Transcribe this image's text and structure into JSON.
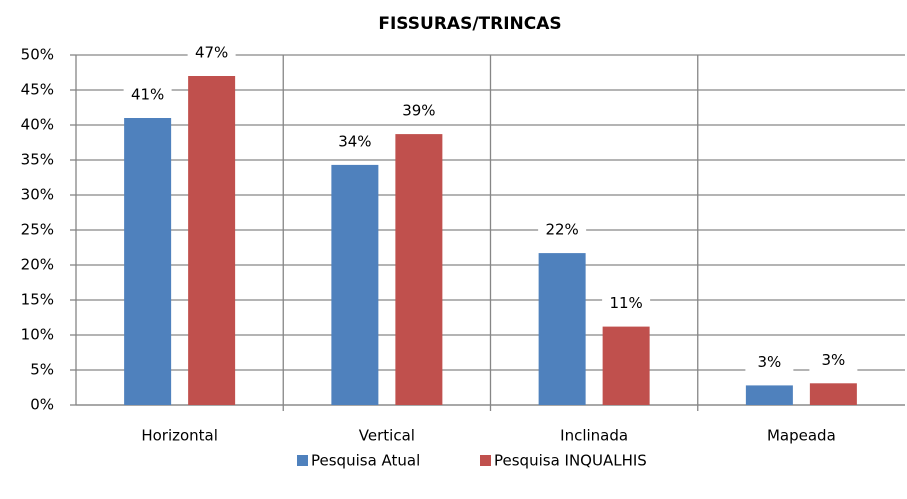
{
  "chart_data": {
    "type": "bar",
    "title": "FISSURAS/TRINCAS",
    "categories": [
      "Horizontal",
      "Vertical",
      "Inclinada",
      "Mapeada"
    ],
    "series": [
      {
        "name": "Pesquisa Atual",
        "color": "#4f81bd",
        "values": [
          41,
          34.3,
          21.7,
          2.8
        ],
        "value_labels": [
          "41%",
          "34%",
          "22%",
          "3%"
        ]
      },
      {
        "name": "Pesquisa INQUALHIS",
        "color": "#c0504d",
        "values": [
          47,
          38.7,
          11.2,
          3.1
        ],
        "value_labels": [
          "47%",
          "39%",
          "11%",
          "3%"
        ]
      }
    ],
    "ylim": [
      0,
      50
    ],
    "yticks": [
      {
        "value": 0,
        "label": "0%"
      },
      {
        "value": 5,
        "label": "5%"
      },
      {
        "value": 10,
        "label": "10%"
      },
      {
        "value": 15,
        "label": "15%"
      },
      {
        "value": 20,
        "label": "20%"
      },
      {
        "value": 25,
        "label": "25%"
      },
      {
        "value": 30,
        "label": "30%"
      },
      {
        "value": 35,
        "label": "35%"
      },
      {
        "value": 40,
        "label": "40%"
      },
      {
        "value": 45,
        "label": "45%"
      },
      {
        "value": 50,
        "label": "50%"
      }
    ],
    "grid": true,
    "legend": "bottom"
  }
}
